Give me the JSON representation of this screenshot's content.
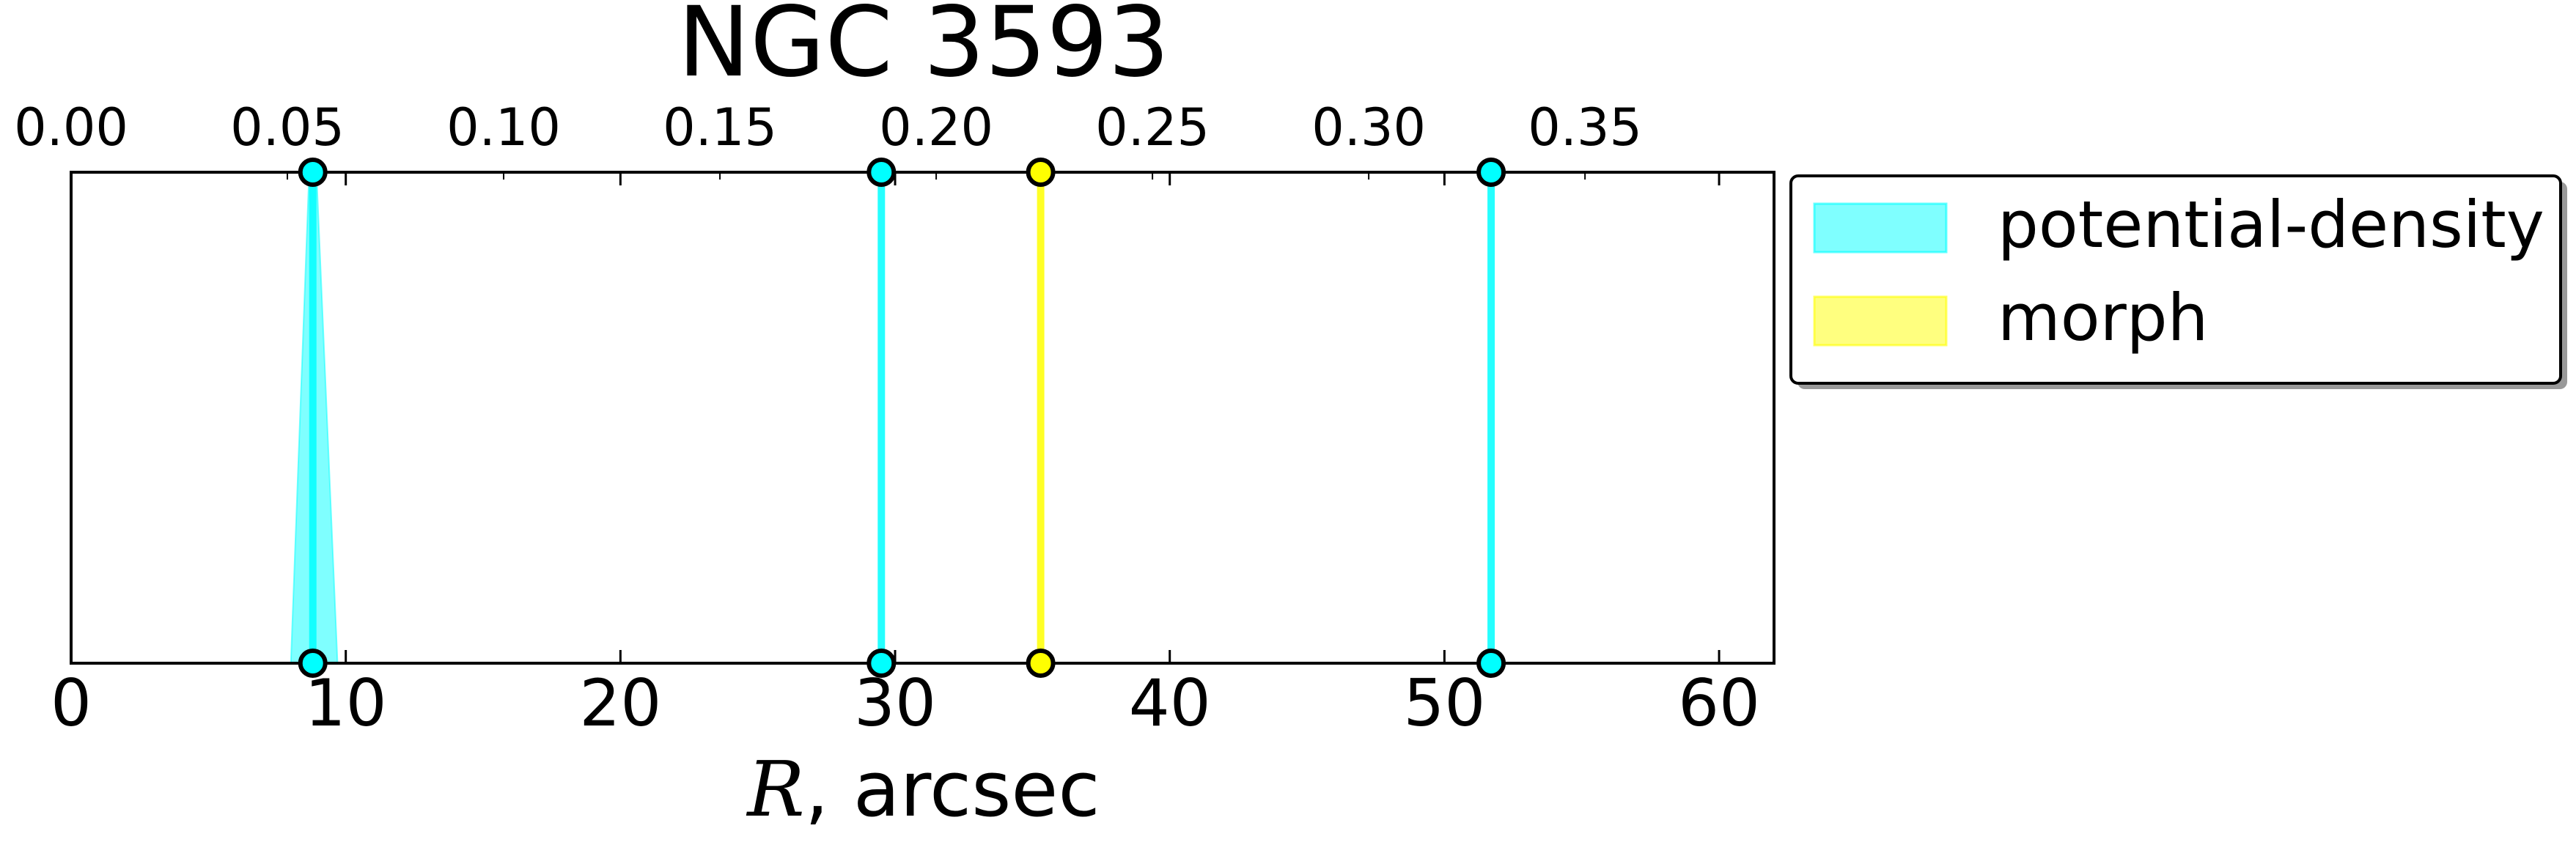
{
  "chart_data": {
    "type": "line",
    "title": "NGC 3593",
    "xlabel": "R, arcsec",
    "xlabel_var": "R",
    "xlabel_unit": ", arcsec",
    "xlim": [
      0,
      62
    ],
    "xticks": [
      0,
      10,
      20,
      30,
      40,
      50,
      60
    ],
    "top_xlim": [
      0,
      0.3937
    ],
    "top_xticks": [
      "0.00",
      "0.05",
      "0.10",
      "0.15",
      "0.20",
      "0.25",
      "0.30",
      "0.35"
    ],
    "grid": false,
    "legend_position": "outside-right-top",
    "legend": [
      {
        "label": "potential-density",
        "color": "#00ffff"
      },
      {
        "label": "morph",
        "color": "#ffff00"
      }
    ],
    "series": [
      {
        "name": "potential-density",
        "color": "#00ffff",
        "bands": [
          {
            "top": 8.8,
            "bottom": 8.8,
            "bottom_spread": [
              8.0,
              9.7
            ]
          },
          {
            "top": 29.5,
            "bottom": 29.5
          },
          {
            "top": 51.7,
            "bottom": 51.7
          }
        ]
      },
      {
        "name": "morph",
        "color": "#ffff00",
        "bands": [
          {
            "top": 35.3,
            "bottom": 35.3
          }
        ]
      }
    ]
  }
}
